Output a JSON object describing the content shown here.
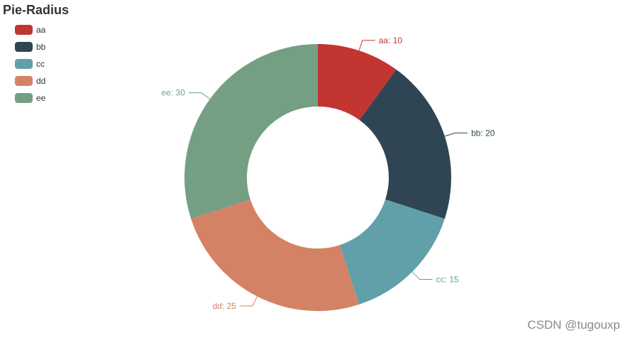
{
  "chart_data": {
    "type": "pie",
    "title": "Pie-Radius",
    "categories": [
      "aa",
      "bb",
      "cc",
      "dd",
      "ee"
    ],
    "values": [
      10,
      20,
      15,
      25,
      30
    ],
    "slice_labels": [
      "aa: 10",
      "bb: 20",
      "cc: 15",
      "dd: 25",
      "ee: 30"
    ],
    "colors": [
      "#c23531",
      "#2f4554",
      "#61a0a8",
      "#d48265",
      "#749f83"
    ],
    "donut": true,
    "legend_position": "top-left",
    "legend_orientation": "vertical"
  },
  "watermark": "CSDN @tugouxp"
}
